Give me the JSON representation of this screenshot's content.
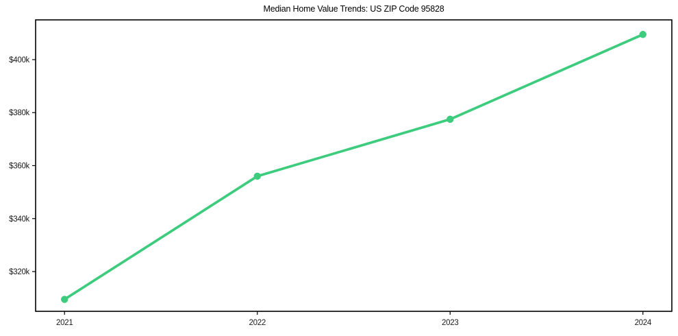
{
  "chart_data": {
    "type": "line",
    "title": "Median Home Value Trends: US ZIP Code 95828",
    "xlabel": "",
    "ylabel": "",
    "x": [
      2021,
      2022,
      2023,
      2024
    ],
    "values": [
      309500,
      356000,
      377500,
      409500
    ],
    "x_tick_labels": [
      "2021",
      "2022",
      "2023",
      "2024"
    ],
    "y_ticks": [
      320000,
      340000,
      360000,
      380000,
      400000
    ],
    "y_tick_labels": [
      "$320k",
      "$340k",
      "$360k",
      "$380k",
      "$400k"
    ],
    "xlim": [
      2020.85,
      2024.15
    ],
    "ylim": [
      305000,
      415000
    ],
    "grid": false,
    "legend": "none",
    "marker": "circle",
    "colors": {
      "line": "#3dcc7e",
      "axis": "#000000",
      "tick_label": "#1a1a1a",
      "background": "#ffffff"
    }
  }
}
